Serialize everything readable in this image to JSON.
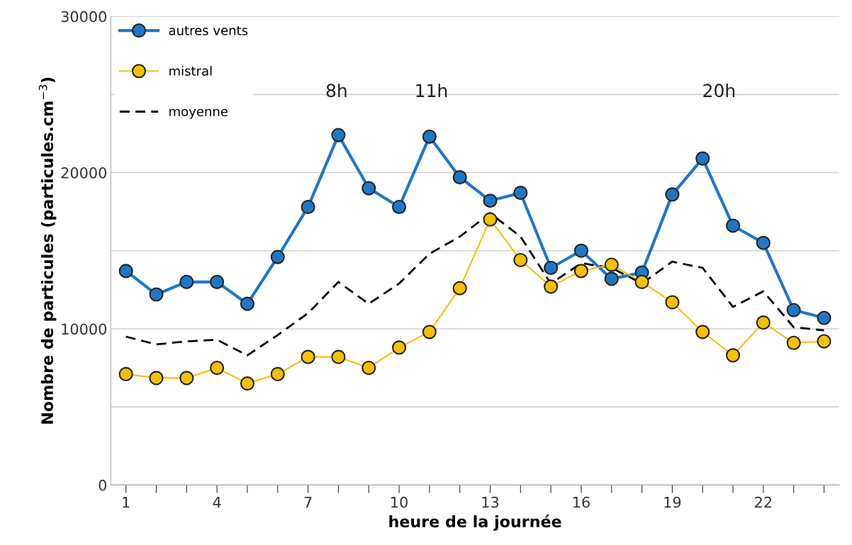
{
  "chart_data": {
    "type": "line",
    "xlabel": "heure de la journée",
    "ylabel": "Nombre de particules (particules.cm$^{−3}$)",
    "x": [
      1,
      2,
      3,
      4,
      5,
      6,
      7,
      8,
      9,
      10,
      11,
      12,
      13,
      14,
      15,
      16,
      17,
      18,
      19,
      20,
      21,
      22,
      23,
      24
    ],
    "series": [
      {
        "name": "autres vents",
        "color": "#1f77c4",
        "marker": "circle",
        "line_style": "solid",
        "values": [
          13700,
          12200,
          13000,
          13000,
          11600,
          14600,
          17800,
          22400,
          19000,
          17800,
          22300,
          19700,
          18200,
          18700,
          13900,
          15000,
          13200,
          13600,
          18600,
          20900,
          16600,
          15500,
          11200,
          10700
        ]
      },
      {
        "name": "mistral",
        "color": "#f5c000",
        "marker": "circle",
        "line_style": "solid",
        "values": [
          7100,
          6850,
          6850,
          7500,
          6500,
          7100,
          8200,
          8200,
          7500,
          8800,
          9800,
          12600,
          17000,
          14400,
          12700,
          13700,
          14100,
          13000,
          11700,
          9800,
          8300,
          10400,
          9100,
          9200
        ]
      },
      {
        "name": "moyenne",
        "color": "#000000",
        "marker": "none",
        "line_style": "dashed",
        "values": [
          9500,
          9000,
          9200,
          9300,
          8300,
          9600,
          11000,
          13000,
          11600,
          12900,
          14800,
          15900,
          17400,
          15900,
          12900,
          14200,
          13900,
          12900,
          14300,
          13900,
          11400,
          12400,
          10100,
          9900
        ]
      }
    ],
    "xlim": [
      0.5,
      24.5
    ],
    "xticks": [
      1,
      {
        "value": 2,
        "label": null
      },
      {
        "value": 3,
        "label": null
      },
      4,
      {
        "value": 5,
        "label": null
      },
      {
        "value": 6,
        "label": null
      },
      7,
      {
        "value": 8,
        "label": null
      },
      {
        "value": 9,
        "label": null
      },
      10,
      {
        "value": 11,
        "label": null
      },
      {
        "value": 12,
        "label": null
      },
      13,
      {
        "value": 14,
        "label": null
      },
      {
        "value": 15,
        "label": null
      },
      16,
      {
        "value": 17,
        "label": null
      },
      {
        "value": 18,
        "label": null
      },
      19,
      {
        "value": 20,
        "label": null
      },
      {
        "value": 21,
        "label": null
      },
      22,
      {
        "value": 23,
        "label": null
      },
      {
        "value": 24,
        "label": null
      }
    ],
    "ylim": [
      0,
      30000
    ],
    "yticks": [
      0,
      {
        "value": 5000,
        "label": null
      },
      10000,
      {
        "value": 15000,
        "label": null
      },
      20000,
      {
        "value": 25000,
        "label": null
      },
      30000
    ],
    "grid": "y",
    "legend": "top left",
    "annotations": [
      "8h",
      "11h",
      "20h"
    ]
  }
}
